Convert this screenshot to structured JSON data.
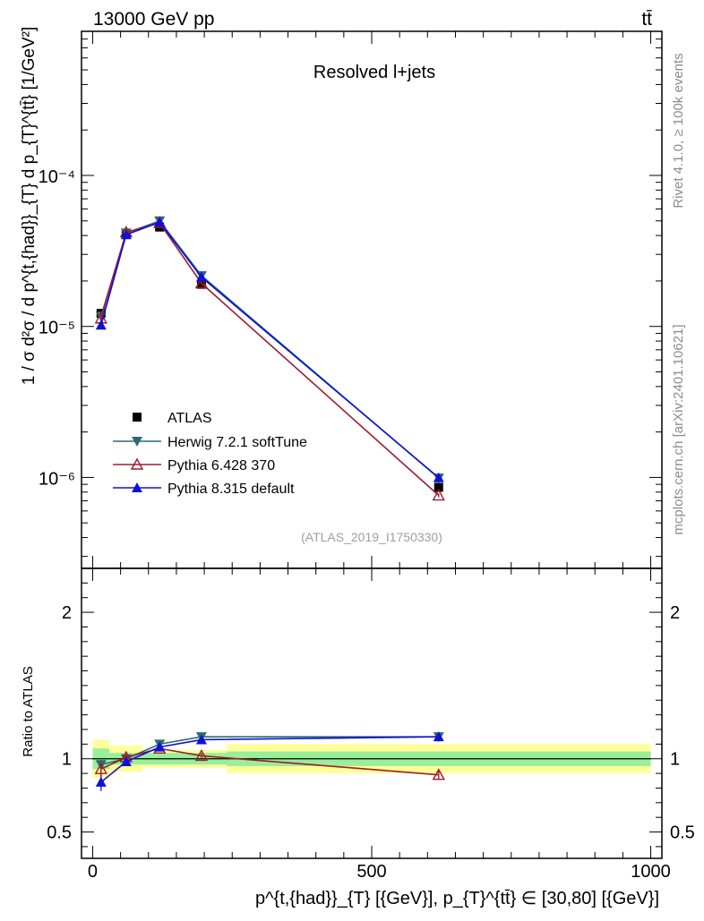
{
  "header": {
    "left_label": "13000 GeV pp",
    "right_label": "tt̄",
    "side_label_top": "Rivet 4.1.0, ≥ 100k events",
    "side_label_bottom": "mcplots.cern.ch [arXiv:2401.10621]"
  },
  "chart_data": [
    {
      "panel": "main",
      "type": "line",
      "title": "Resolved l+jets",
      "xlabel": "p^{t,{had}}_{T} [{GeV}], p_{T}^{tt̄} ∈ [30,80] [{GeV}]",
      "ylabel": "1 / σ d²σ / d p^{t,{had}}_{T} d p_{T}^{tt̄} [1/GeV²]",
      "yscale": "log",
      "xlim": [
        -20,
        1020
      ],
      "ylim": [
        2.5e-07,
        0.0009
      ],
      "ytick_labels": [
        "10⁻⁶",
        "10⁻⁵",
        "10⁻⁴"
      ],
      "ytick_values": [
        1e-06,
        1e-05,
        0.0001
      ],
      "analysis_id": "(ATLAS_2019_I1750330)",
      "legend_position": "lower-left",
      "series": [
        {
          "name": "ATLAS",
          "color": "#000000",
          "marker": "square",
          "x": [
            15,
            60,
            120,
            195,
            620
          ],
          "y": [
            1.22e-05,
            4.15e-05,
            4.55e-05,
            1.9e-05,
            8.6e-07
          ],
          "yerr_rel": [
            0.04,
            0.03,
            0.03,
            0.03,
            0.04
          ]
        },
        {
          "name": "Herwig 7.2.1 softTune",
          "color": "#2d6a73",
          "marker": "triangle-down",
          "x": [
            15,
            60,
            120,
            195,
            620
          ],
          "y": [
            1.17e-05,
            4.15e-05,
            5e-05,
            2.17e-05,
            9.9e-07
          ],
          "yerr_rel": [
            0.03,
            0.02,
            0.02,
            0.02,
            0.03
          ]
        },
        {
          "name": "Pythia 6.428 370",
          "color": "#a01a2c",
          "marker": "triangle-open",
          "x": [
            15,
            60,
            120,
            195,
            620
          ],
          "y": [
            1.13e-05,
            4.2e-05,
            4.85e-05,
            1.93e-05,
            7.6e-07
          ],
          "yerr_rel": [
            0.03,
            0.02,
            0.02,
            0.02,
            0.03
          ]
        },
        {
          "name": "Pythia 8.315 default",
          "color": "#1010d8",
          "marker": "triangle-up",
          "x": [
            15,
            60,
            120,
            195,
            620
          ],
          "y": [
            1.02e-05,
            4.05e-05,
            4.9e-05,
            2.12e-05,
            9.95e-07
          ],
          "yerr_rel": [
            0.06,
            0.02,
            0.02,
            0.02,
            0.03
          ]
        }
      ]
    },
    {
      "panel": "ratio",
      "type": "line",
      "ylabel": "Ratio to ATLAS",
      "xlim": [
        -20,
        1020
      ],
      "ylim": [
        0.32,
        2.3
      ],
      "xtick_labels": [
        "0",
        "500",
        "1000"
      ],
      "xtick_values": [
        0,
        500,
        1000
      ],
      "ytick_labels": [
        "0.5",
        "1",
        "2"
      ],
      "ytick_values": [
        0.5,
        1,
        2
      ],
      "band_edges": [
        0,
        30,
        90,
        150,
        240,
        1000
      ],
      "band_green_half": [
        0.07,
        0.04,
        0.04,
        0.04,
        0.05
      ],
      "band_yellow_half": [
        0.13,
        0.09,
        0.06,
        0.06,
        0.1
      ],
      "series": [
        {
          "name": "Herwig 7.2.1 softTune",
          "color": "#2d6a73",
          "marker": "triangle-down",
          "x": [
            15,
            60,
            120,
            195,
            620
          ],
          "y": [
            0.96,
            1.0,
            1.1,
            1.15,
            1.15
          ],
          "yerr": [
            0.04,
            0.02,
            0.02,
            0.02,
            0.03
          ]
        },
        {
          "name": "Pythia 6.428 370",
          "color": "#a01a2c",
          "marker": "triangle-open",
          "x": [
            15,
            60,
            120,
            195,
            620
          ],
          "y": [
            0.93,
            1.01,
            1.07,
            1.02,
            0.89
          ],
          "yerr": [
            0.03,
            0.02,
            0.02,
            0.02,
            0.03
          ]
        },
        {
          "name": "Pythia 8.315 default",
          "color": "#1010d8",
          "marker": "triangle-up",
          "x": [
            15,
            60,
            120,
            195,
            620
          ],
          "y": [
            0.84,
            0.98,
            1.08,
            1.13,
            1.15
          ],
          "yerr": [
            0.06,
            0.02,
            0.02,
            0.02,
            0.03
          ]
        }
      ]
    }
  ]
}
